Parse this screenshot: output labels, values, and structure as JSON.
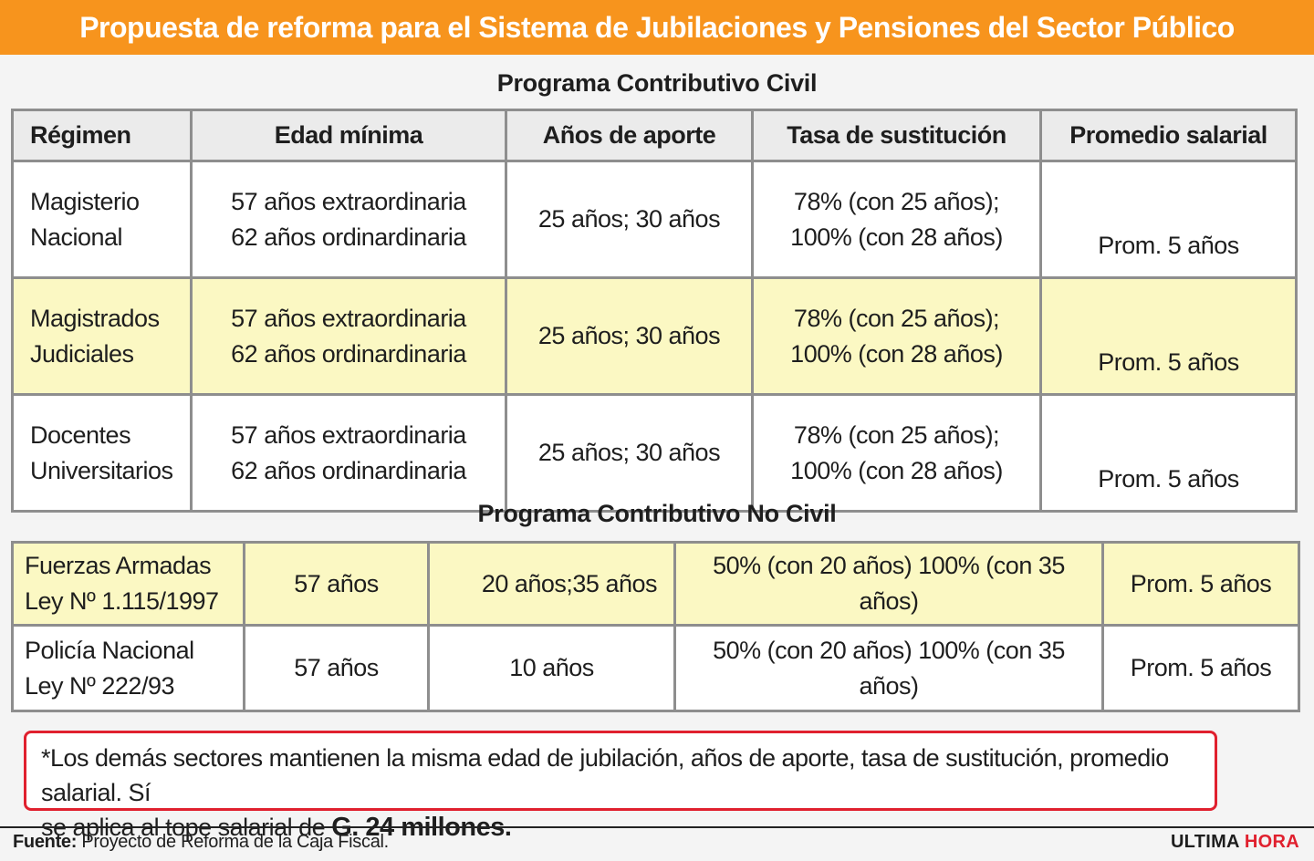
{
  "title": "Propuesta de reforma para el Sistema de Jubilaciones y Pensiones del Sector Público",
  "civil": {
    "title": "Programa Contributivo Civil",
    "headers": [
      "Régimen",
      "Edad mínima",
      "Años de aporte",
      "Tasa de sustitución",
      "Promedio salarial"
    ],
    "rows": [
      {
        "regimen": [
          "Magisterio",
          "Nacional"
        ],
        "edad": [
          "57 años extraordinaria",
          "62 años ordinardinaria"
        ],
        "aporte": "25 años; 30 años",
        "tasa": [
          "78% (con 25 años);",
          "100% (con 28 años)"
        ],
        "promedio": "Prom. 5 años"
      },
      {
        "regimen": [
          "Magistrados",
          "Judiciales"
        ],
        "edad": [
          "57 años extraordinaria",
          "62 años ordinardinaria"
        ],
        "aporte": "25 años; 30 años",
        "tasa": [
          "78% (con 25 años);",
          "100% (con 28 años)"
        ],
        "promedio": "Prom. 5 años"
      },
      {
        "regimen": [
          "Docentes",
          "Universitarios"
        ],
        "edad": [
          "57 años extraordinaria",
          "62 años ordinardinaria"
        ],
        "aporte": "25 años; 30 años",
        "tasa": [
          "78% (con 25 años);",
          "100% (con 28 años)"
        ],
        "promedio": "Prom. 5 años"
      }
    ]
  },
  "nocivil": {
    "title": "Programa Contributivo No Civil",
    "rows": [
      {
        "regimen": [
          "Fuerzas Armadas",
          "Ley Nº 1.115/1997"
        ],
        "edad": "57 años",
        "aporte": "20 años;35 años",
        "tasa": "50% (con 20 años) 100% (con 35 años)",
        "promedio": "Prom. 5 años"
      },
      {
        "regimen": [
          "Policía Nacional",
          "Ley Nº 222/93"
        ],
        "edad": "57 años",
        "aporte": "10 años",
        "tasa": "50% (con 20 años) 100% (con 35 años)",
        "promedio": "Prom. 5 años"
      }
    ]
  },
  "note": {
    "text_line1": "*Los demás sectores mantienen la misma edad de jubilación, años de aporte, tasa de sustitución, promedio salarial. Sí",
    "text_line2": "se aplica al tope salarial de ",
    "bold": "G. 24 millones."
  },
  "footer": {
    "source_label": "Fuente:",
    "source_text": " Proyecto de Reforma de la Caja Fiscal.",
    "brand_part1": "ULTIMA ",
    "brand_part2": "HORA"
  },
  "colors": {
    "title_bar": "#f7941d",
    "highlight_row": "#fbf8c3",
    "note_border": "#e0202e"
  }
}
